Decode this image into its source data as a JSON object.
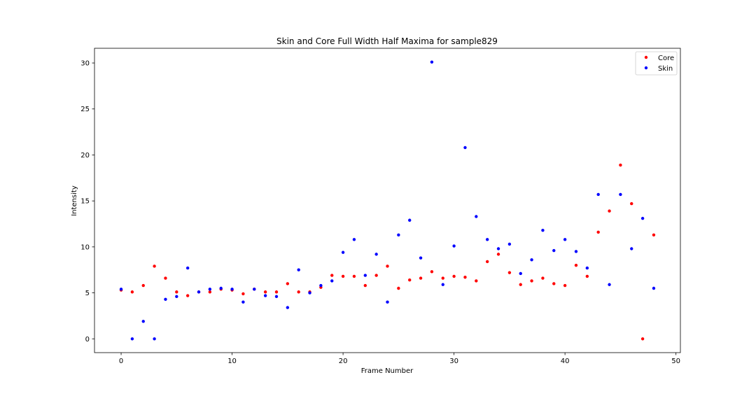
{
  "chart_data": {
    "type": "scatter",
    "title": "Skin and Core Full Width Half Maxima for sample829",
    "xlabel": "Frame Number",
    "ylabel": "Intensity",
    "xlim": [
      -2.4,
      50.4
    ],
    "ylim": [
      -1.5,
      31.6
    ],
    "xticks": [
      0,
      10,
      20,
      30,
      40,
      50
    ],
    "yticks": [
      0,
      5,
      10,
      15,
      20,
      25,
      30
    ],
    "grid": false,
    "legend_position": "top-right",
    "series": [
      {
        "name": "Core",
        "color": "#ff0000",
        "x": [
          0,
          1,
          2,
          3,
          4,
          5,
          6,
          7,
          8,
          9,
          10,
          11,
          12,
          13,
          14,
          15,
          16,
          17,
          18,
          19,
          20,
          21,
          22,
          23,
          24,
          25,
          26,
          27,
          28,
          29,
          30,
          31,
          32,
          33,
          34,
          35,
          36,
          37,
          38,
          39,
          40,
          41,
          42,
          43,
          44,
          45,
          46,
          47,
          48
        ],
        "y": [
          5.3,
          5.1,
          5.8,
          7.9,
          6.6,
          5.1,
          4.7,
          5.1,
          5.1,
          5.4,
          5.3,
          4.9,
          5.4,
          5.1,
          5.1,
          6.0,
          5.1,
          5.1,
          5.6,
          6.9,
          6.8,
          6.8,
          5.8,
          6.9,
          7.9,
          5.5,
          6.4,
          6.6,
          7.3,
          6.6,
          6.8,
          6.7,
          6.3,
          8.4,
          9.2,
          7.2,
          5.9,
          6.3,
          6.6,
          6.0,
          5.8,
          8.0,
          6.8,
          11.6,
          13.9,
          18.9,
          14.7,
          0.0,
          11.3
        ]
      },
      {
        "name": "Skin",
        "color": "#0000ff",
        "x": [
          0,
          1,
          2,
          3,
          4,
          5,
          6,
          7,
          8,
          9,
          10,
          11,
          12,
          13,
          14,
          15,
          16,
          17,
          18,
          19,
          20,
          21,
          22,
          23,
          24,
          25,
          26,
          27,
          28,
          29,
          30,
          31,
          32,
          33,
          34,
          35,
          36,
          37,
          38,
          39,
          40,
          41,
          42,
          43,
          44,
          45,
          46,
          47,
          48
        ],
        "y": [
          5.4,
          0.0,
          1.9,
          0.0,
          4.3,
          4.6,
          7.7,
          5.1,
          5.4,
          5.5,
          5.4,
          4.0,
          5.4,
          4.7,
          4.6,
          3.4,
          7.5,
          5.0,
          5.8,
          6.3,
          9.4,
          10.8,
          6.9,
          9.2,
          4.0,
          11.3,
          12.9,
          8.8,
          30.1,
          5.9,
          10.1,
          20.8,
          13.3,
          10.8,
          9.8,
          10.3,
          7.1,
          8.6,
          11.8,
          9.6,
          10.8,
          9.5,
          7.7,
          15.7,
          5.9,
          15.7,
          9.8,
          13.1,
          5.5
        ]
      }
    ]
  }
}
